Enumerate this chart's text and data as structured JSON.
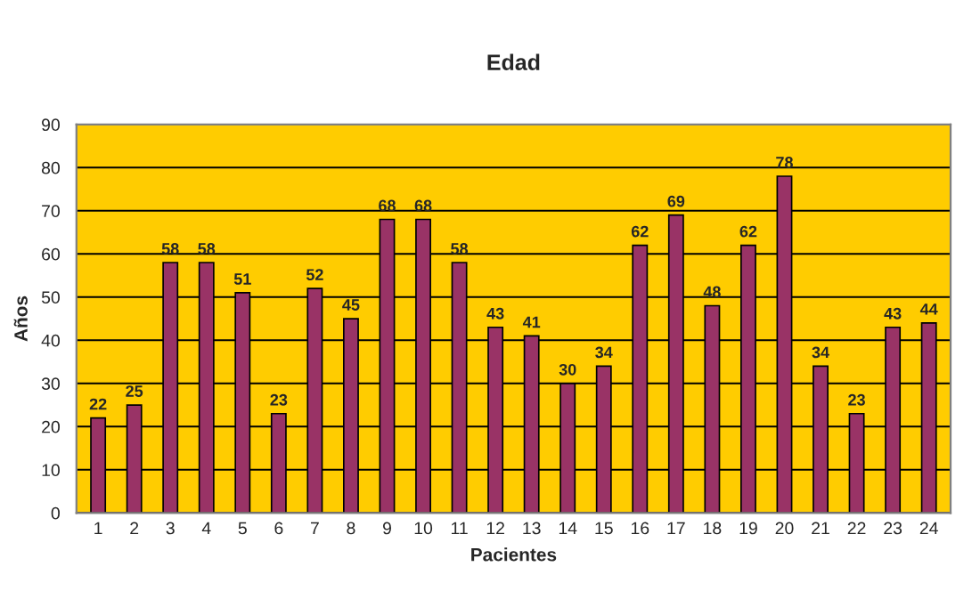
{
  "chart_data": {
    "type": "bar",
    "title": "Edad",
    "xlabel": "Pacientes",
    "ylabel": "Años",
    "categories": [
      "1",
      "2",
      "3",
      "4",
      "5",
      "6",
      "7",
      "8",
      "9",
      "10",
      "11",
      "12",
      "13",
      "14",
      "15",
      "16",
      "17",
      "18",
      "19",
      "20",
      "21",
      "22",
      "23",
      "24"
    ],
    "values": [
      22,
      25,
      58,
      58,
      51,
      23,
      52,
      45,
      68,
      68,
      58,
      43,
      41,
      30,
      34,
      62,
      69,
      48,
      62,
      78,
      34,
      23,
      43,
      44
    ],
    "color": "#993366",
    "ylim": [
      0,
      90
    ],
    "yticks": [
      0,
      10,
      20,
      30,
      40,
      50,
      60,
      70,
      80,
      90
    ],
    "grid": "y",
    "data_labels": true,
    "legend": false
  }
}
